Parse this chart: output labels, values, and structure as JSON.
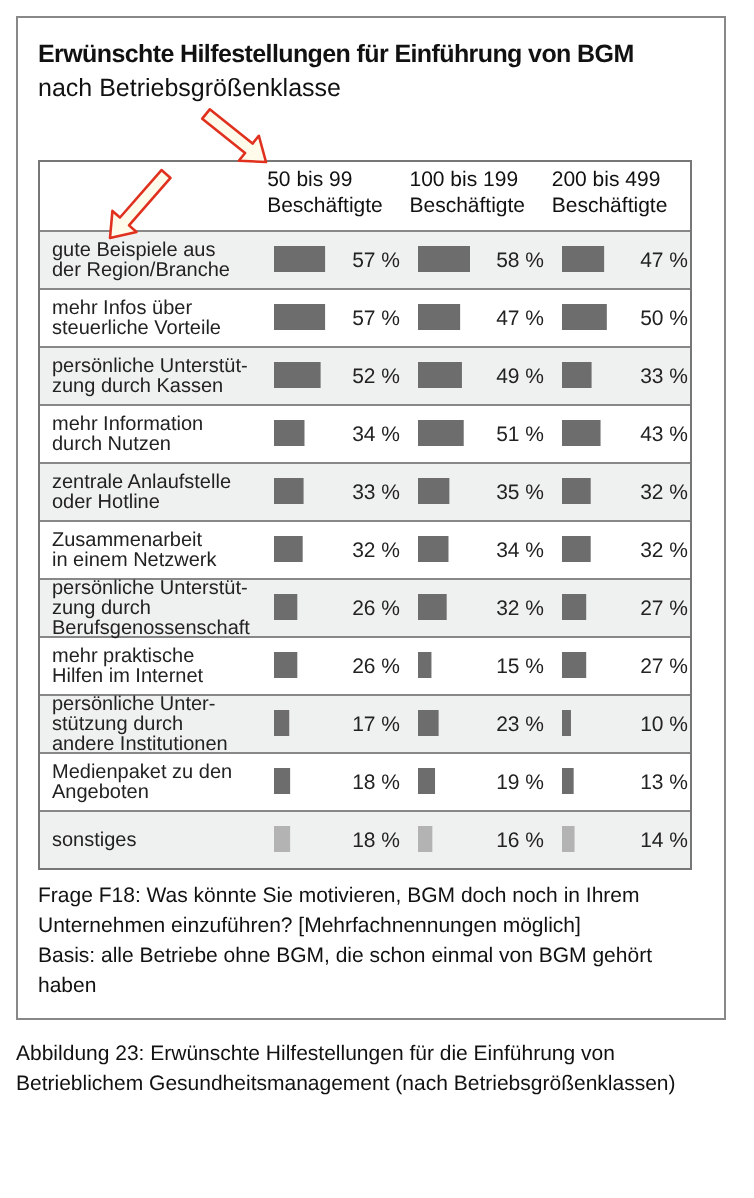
{
  "chart_data": [
    {
      "type": "bar",
      "orientation": "horizontal",
      "title": "Erwünschte Hilfestellungen für Einführung von BGM",
      "subtitle": "nach Betriebsgrößenklasse",
      "xlabel": "50 bis 99 Beschäftigte",
      "tick_labels": "y",
      "categories": [
        "gute Beispiele aus\nder Region/Branche",
        "mehr Infos über\nsteuerliche Vorteile",
        "persönliche Unterstüt-\nzung durch Kassen",
        "mehr Information\ndurch Nutzen",
        "zentrale Anlaufstelle\noder Hotline",
        "Zusammenarbeit\nin einem Netzwerk",
        "persönliche Unterstüt-\nzung durch\nBerufsgenossenschaft",
        "mehr praktische\nHilfen im Internet",
        "persönliche Unter-\nstützung durch\nandere Institutionen",
        "Medienpaket zu den\nAngeboten",
        "sonstiges"
      ],
      "values": [
        57,
        57,
        52,
        34,
        33,
        32,
        26,
        26,
        17,
        18,
        18
      ],
      "value_labels": [
        "57 %",
        "57 %",
        "52 %",
        "34 %",
        "33 %",
        "32 %",
        "26 %",
        "26 %",
        "17 %",
        "18 %",
        "18 %"
      ],
      "colors": [
        "#6d6d6d",
        "#6d6d6d",
        "#6d6d6d",
        "#6d6d6d",
        "#6d6d6d",
        "#6d6d6d",
        "#6d6d6d",
        "#6d6d6d",
        "#6d6d6d",
        "#6d6d6d",
        "#b3b3b3"
      ],
      "annotations": [
        "Frage F18: Was könnte Sie motivieren, BGM doch noch in Ihrem Unternehmen einzuführen? [Mehrfachnennungen möglich]",
        "Basis: alle Betriebe ohne BGM, die schon einmal von BGM gehört haben",
        "Abbildung 23: Erwünschte Hilfestellungen für die Einführung von Betrieblichem Gesundheitsmanagement (nach Betriebsgrößenklassen)"
      ]
    },
    {
      "type": "bar",
      "orientation": "horizontal",
      "xlabel": "100 bis 199 Beschäftigte",
      "tick_labels": false,
      "values": [
        58,
        47,
        49,
        51,
        35,
        34,
        32,
        15,
        23,
        19,
        16
      ],
      "value_labels": [
        "58 %",
        "47 %",
        "49 %",
        "51 %",
        "35 %",
        "34 %",
        "32 %",
        "15 %",
        "23 %",
        "19 %",
        "16 %"
      ],
      "colors": [
        "#6d6d6d",
        "#6d6d6d",
        "#6d6d6d",
        "#6d6d6d",
        "#6d6d6d",
        "#6d6d6d",
        "#6d6d6d",
        "#6d6d6d",
        "#6d6d6d",
        "#6d6d6d",
        "#b3b3b3"
      ]
    },
    {
      "type": "bar",
      "orientation": "horizontal",
      "xlabel": "200 bis 499 Beschäftigte",
      "tick_labels": false,
      "values": [
        47,
        50,
        33,
        43,
        32,
        32,
        27,
        27,
        10,
        13,
        14
      ],
      "value_labels": [
        "47 %",
        "50 %",
        "33 %",
        "43 %",
        "32 %",
        "32 %",
        "27 %",
        "27 %",
        "10 %",
        "13 %",
        "14 %"
      ],
      "colors": [
        "#6d6d6d",
        "#6d6d6d",
        "#6d6d6d",
        "#6d6d6d",
        "#6d6d6d",
        "#6d6d6d",
        "#6d6d6d",
        "#6d6d6d",
        "#6d6d6d",
        "#6d6d6d",
        "#b3b3b3"
      ]
    }
  ]
}
